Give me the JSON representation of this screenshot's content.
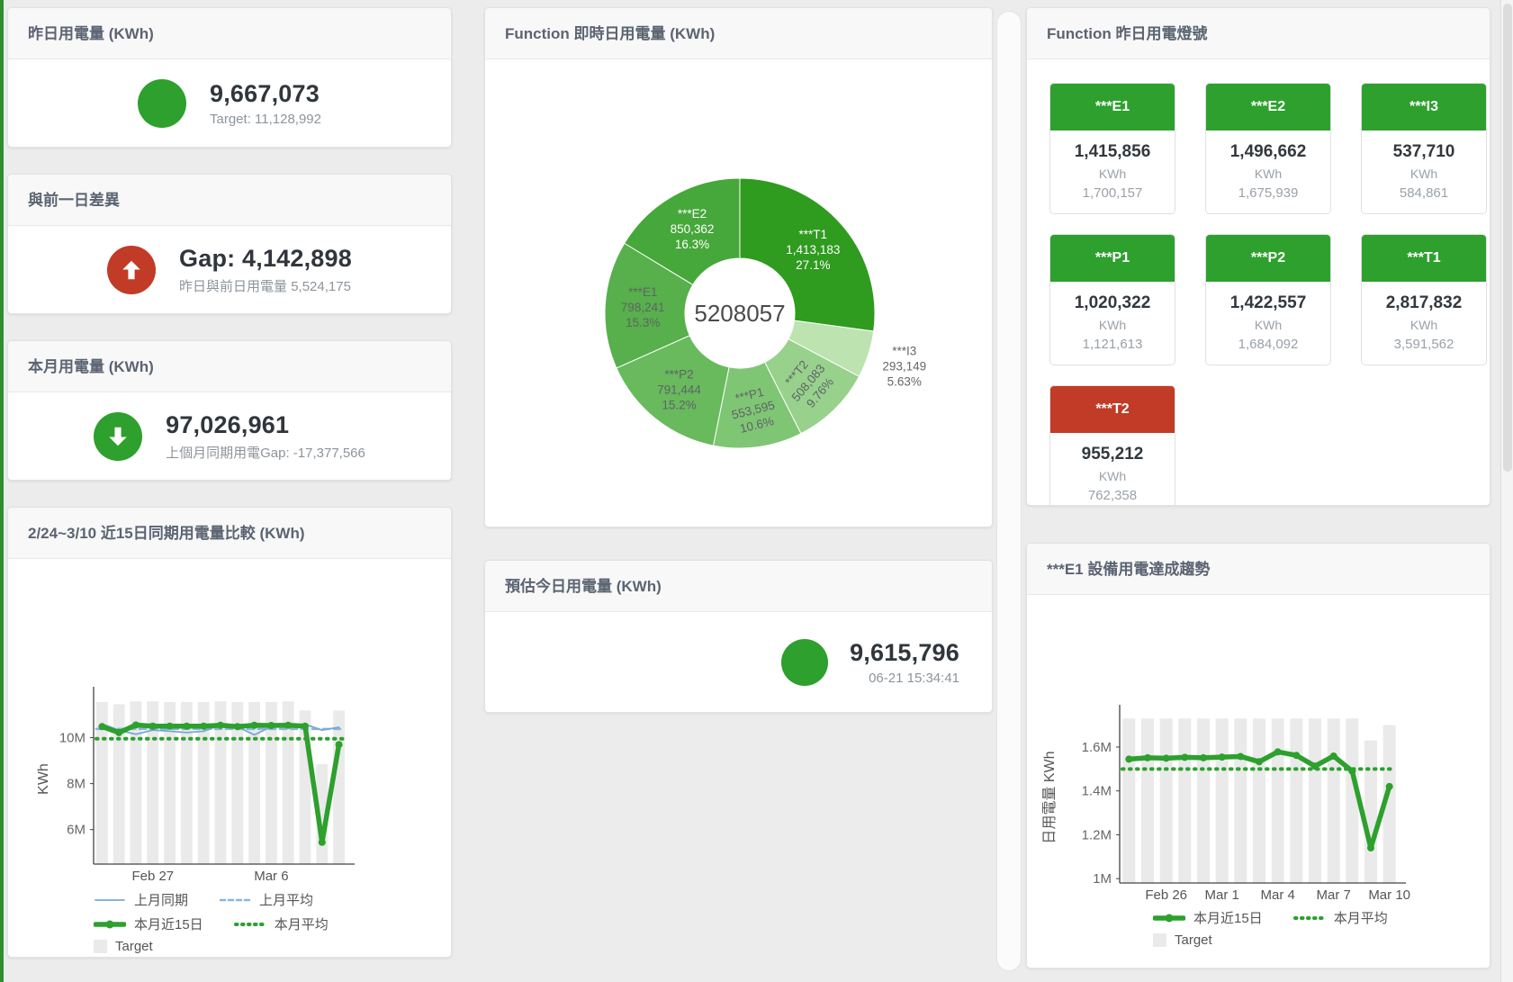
{
  "theme": {
    "green": "#2da02d",
    "red": "#c13b27",
    "blue": "#79a7d4",
    "blue_dashed": "#8ab5de",
    "bar_gray": "#eaeaea",
    "page_bg": "#ececec"
  },
  "cards": {
    "yesterday": {
      "title": "昨日用電量 (KWh)",
      "value": "9,667,073",
      "sub": "Target: 11,128,992",
      "status_color": "#2da02d",
      "arrow": "none"
    },
    "diff": {
      "title": "與前一日差異",
      "value": "Gap: 4,142,898",
      "sub": "昨日與前日用電量 5,524,175",
      "status_color": "#c13b27",
      "arrow": "up"
    },
    "month": {
      "title": "本月用電量 (KWh)",
      "value": "97,026,961",
      "sub": "上個月同期用電Gap: -17,377,566",
      "status_color": "#2da02d",
      "arrow": "down"
    },
    "estimate": {
      "title": "預估今日用電量 (KWh)",
      "value": "9,615,796",
      "sub": "06-21 15:34:41",
      "status_color": "#2da02d",
      "arrow": "none"
    }
  },
  "lamp": {
    "title": "Function 昨日用電燈號",
    "unit": "KWh",
    "tiles": [
      {
        "label": "***E1",
        "value": "1,415,856",
        "target": "1,700,157",
        "color": "#2da02d"
      },
      {
        "label": "***E2",
        "value": "1,496,662",
        "target": "1,675,939",
        "color": "#2da02d"
      },
      {
        "label": "***I3",
        "value": "537,710",
        "target": "584,861",
        "color": "#2da02d"
      },
      {
        "label": "***P1",
        "value": "1,020,322",
        "target": "1,121,613",
        "color": "#2da02d"
      },
      {
        "label": "***P2",
        "value": "1,422,557",
        "target": "1,684,092",
        "color": "#2da02d"
      },
      {
        "label": "***T1",
        "value": "2,817,832",
        "target": "3,591,562",
        "color": "#2da02d"
      },
      {
        "label": "***T2",
        "value": "955,212",
        "target": "762,358",
        "color": "#c13b27"
      }
    ]
  },
  "chart_data": [
    {
      "id": "realtime_donut",
      "type": "pie",
      "title": "Function 即時日用電量 (KWh)",
      "center_total": "5208057",
      "clockwise_from_top": true,
      "slices": [
        {
          "name": "***T1",
          "value": 1413183,
          "pct": "27.1%",
          "color": "#2f9b1f",
          "label_color": "#ffffff"
        },
        {
          "name": "***I3",
          "value": 293149,
          "pct": "5.63%",
          "color": "#bce3b0",
          "label_color": "#666666",
          "outside": true
        },
        {
          "name": "***T2",
          "value": 508083,
          "pct": "9.76%",
          "color": "#98d18c",
          "label_color": "#5f6368"
        },
        {
          "name": "***P1",
          "value": 553595,
          "pct": "10.6%",
          "color": "#7fc674",
          "label_color": "#5f6368"
        },
        {
          "name": "***P2",
          "value": 791444,
          "pct": "15.2%",
          "color": "#68ba5d",
          "label_color": "#5f6368"
        },
        {
          "name": "***E1",
          "value": 798241,
          "pct": "15.3%",
          "color": "#57b04b",
          "label_color": "#5f6368"
        },
        {
          "name": "***E2",
          "value": 850362,
          "pct": "16.3%",
          "color": "#46a73a",
          "label_color": "#ffffff"
        }
      ]
    },
    {
      "id": "compare15",
      "type": "line+bar",
      "title": "2/24~3/10 近15日同期用電量比較 (KWh)",
      "ylabel": "KWh",
      "ylim_millions": [
        4.5,
        11.9
      ],
      "days": 15,
      "yticks": [
        {
          "v": 6,
          "label": "6M"
        },
        {
          "v": 8,
          "label": "8M"
        },
        {
          "v": 10,
          "label": "10M"
        }
      ],
      "xticks": [
        {
          "i": 3,
          "label": "Feb 27"
        },
        {
          "i": 10,
          "label": "Mar 6"
        }
      ],
      "series": [
        {
          "name": "Target",
          "type": "bar",
          "color": "#eaeaea",
          "values": [
            11.55,
            11.45,
            11.58,
            11.58,
            11.55,
            11.55,
            11.55,
            11.58,
            11.55,
            11.55,
            11.55,
            11.58,
            11.18,
            8.85,
            11.18
          ]
        },
        {
          "name": "上月同期",
          "type": "line",
          "color": "#79a7d4",
          "width": 1.8,
          "values": [
            10.6,
            10.32,
            10.15,
            10.33,
            10.28,
            10.22,
            10.28,
            10.55,
            10.48,
            10.12,
            10.48,
            10.58,
            10.58,
            10.33,
            10.45
          ]
        },
        {
          "name": "上月平均",
          "type": "dashed",
          "color": "#8ab5de",
          "width": 2.5,
          "const": 10.38
        },
        {
          "name": "本月近15日",
          "type": "line",
          "color": "#2da02d",
          "width": 5.5,
          "values": [
            10.48,
            10.22,
            10.55,
            10.5,
            10.5,
            10.5,
            10.5,
            10.54,
            10.48,
            10.54,
            10.53,
            10.54,
            10.5,
            5.45,
            9.7
          ]
        },
        {
          "name": "本月平均",
          "type": "dotted",
          "color": "#2da02d",
          "width": 4,
          "const": 9.95
        }
      ],
      "legend_rows": [
        [
          "上月同期",
          "上月平均"
        ],
        [
          "本月近15日",
          "本月平均"
        ],
        [
          "Target"
        ]
      ]
    },
    {
      "id": "e1_trend",
      "type": "line+bar",
      "title": "***E1 設備用電達成趨勢",
      "ylabel": "日用電量 KWh",
      "ylim_millions": [
        0.98,
        1.76
      ],
      "days": 15,
      "yticks": [
        {
          "v": 1,
          "label": "1M"
        },
        {
          "v": 1.2,
          "label": "1.2M"
        },
        {
          "v": 1.4,
          "label": "1.4M"
        },
        {
          "v": 1.6,
          "label": "1.6M"
        }
      ],
      "xticks": [
        {
          "i": 2,
          "label": "Feb 26"
        },
        {
          "i": 5,
          "label": "Mar 1"
        },
        {
          "i": 8,
          "label": "Mar 4"
        },
        {
          "i": 11,
          "label": "Mar 7"
        },
        {
          "i": 14,
          "label": "Mar 10"
        }
      ],
      "series": [
        {
          "name": "Target",
          "type": "bar",
          "color": "#eaeaea",
          "values": [
            1.73,
            1.73,
            1.73,
            1.73,
            1.73,
            1.73,
            1.73,
            1.73,
            1.73,
            1.73,
            1.73,
            1.73,
            1.73,
            1.63,
            1.7
          ]
        },
        {
          "name": "本月近15日",
          "type": "line",
          "color": "#2da02d",
          "width": 5.5,
          "values": [
            1.545,
            1.551,
            1.549,
            1.553,
            1.551,
            1.554,
            1.557,
            1.533,
            1.578,
            1.562,
            1.513,
            1.559,
            1.49,
            1.14,
            1.42
          ]
        },
        {
          "name": "本月平均",
          "type": "dotted",
          "color": "#2da02d",
          "width": 4,
          "const": 1.5
        }
      ],
      "legend_rows": [
        [
          "本月近15日",
          "本月平均"
        ],
        [
          "Target"
        ]
      ]
    }
  ]
}
